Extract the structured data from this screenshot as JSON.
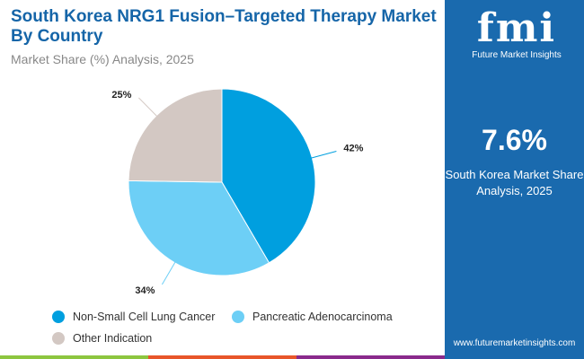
{
  "header": {
    "title": "South Korea NRG1 Fusion–Targeted Therapy Market By Country",
    "subtitle": "Market Share (%) Analysis, 2025"
  },
  "chart_data": {
    "type": "pie",
    "title": "South Korea NRG1 Fusion–Targeted Therapy Market By Country",
    "subtitle": "Market Share (%) Analysis, 2025",
    "categories": [
      "Non-Small Cell Lung Cancer",
      "Pancreatic Adenocarcinoma",
      "Other Indication"
    ],
    "values": [
      42,
      34,
      25
    ],
    "labels": [
      "42%",
      "34%",
      "25%"
    ],
    "colors": [
      "#009fdf",
      "#6dcff6",
      "#d3c8c3"
    ],
    "legend": "bottom"
  },
  "sidebar": {
    "logo_text": "fmi",
    "logo_caption": "Future Market Insights",
    "stat_value": "7.6%",
    "stat_label": "South Korea Market Share Analysis, 2025",
    "url": "www.futuremarketinsights.com"
  }
}
